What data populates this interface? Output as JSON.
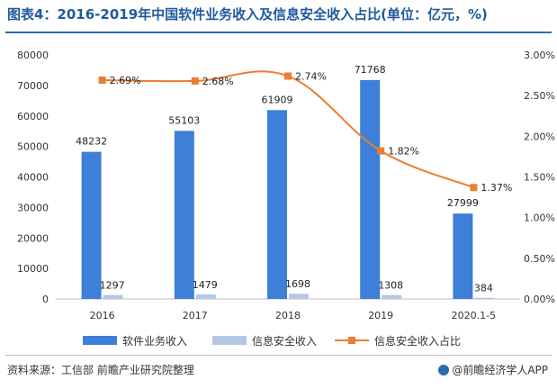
{
  "title": "图表4：2016-2019年中国软件业务收入及信息安全收入占比(单位：亿元，%)",
  "source": "资料来源：工信部 前瞻产业研究院整理",
  "brand": "@前瞻经济学人APP",
  "colors": {
    "software": "#3d7fd9",
    "security": "#b4c7e7",
    "ratio": "#ed7d31",
    "title": "#1f5a9e"
  },
  "chart_data": {
    "type": "bar",
    "categories": [
      "2016",
      "2017",
      "2018",
      "2019",
      "2020.1-5"
    ],
    "series": [
      {
        "name": "软件业务收入",
        "type": "bar",
        "axis": "left",
        "values": [
          48232,
          55103,
          61909,
          71768,
          27999
        ]
      },
      {
        "name": "信息安全收入",
        "type": "bar",
        "axis": "left",
        "values": [
          1297,
          1479,
          1698,
          1308,
          384
        ]
      },
      {
        "name": "信息安全收入占比",
        "type": "line",
        "axis": "right",
        "values": [
          2.69,
          2.68,
          2.74,
          1.82,
          1.37
        ],
        "labels": [
          "2.69%",
          "2.68%",
          "2.74%",
          "1.82%",
          "1.37%"
        ]
      }
    ],
    "y_left": {
      "ticks": [
        "0",
        "10000",
        "20000",
        "30000",
        "40000",
        "50000",
        "60000",
        "70000",
        "80000"
      ],
      "range": [
        0,
        80000
      ]
    },
    "y_right": {
      "ticks": [
        "0.00%",
        "0.50%",
        "1.00%",
        "1.50%",
        "2.00%",
        "2.50%",
        "3.00%"
      ],
      "range": [
        0,
        3
      ]
    },
    "legend_position": "bottom",
    "grid": false
  }
}
